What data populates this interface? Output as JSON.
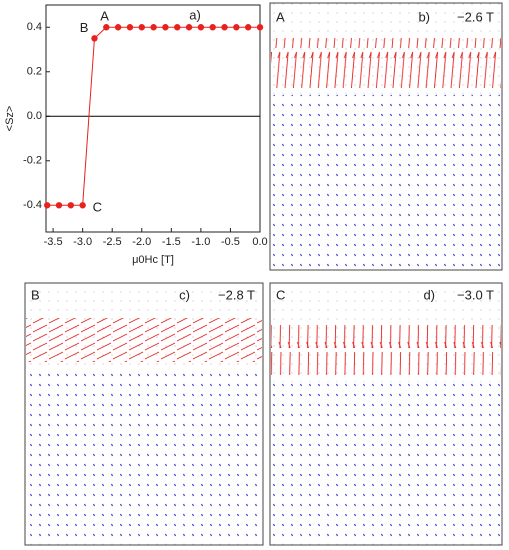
{
  "chart_data": {
    "type": "line",
    "panel_label": "a)",
    "x_label": "μ0Hc [T]",
    "y_label": "<Sz>",
    "x": [
      -3.6,
      -3.4,
      -3.2,
      -3.0,
      -2.8,
      -2.6,
      -2.4,
      -2.2,
      -2.0,
      -1.8,
      -1.6,
      -1.4,
      -1.2,
      -1.0,
      -0.8,
      -0.6,
      -0.4,
      -0.2,
      0.0
    ],
    "series": [
      {
        "color": "#e8211e",
        "values": [
          -0.4,
          -0.4,
          -0.4,
          -0.4,
          0.35,
          0.4,
          0.4,
          0.4,
          0.4,
          0.4,
          0.4,
          0.4,
          0.4,
          0.4,
          0.4,
          0.4,
          0.4,
          0.4,
          0.4
        ]
      }
    ],
    "point_labels": [
      {
        "index": 3,
        "text": "C"
      },
      {
        "index": 4,
        "text": "B"
      },
      {
        "index": 5,
        "text": "A"
      }
    ],
    "xlim": [
      -3.62,
      0
    ],
    "ylim": [
      -0.52,
      0.5
    ],
    "xticks": [
      -3.5,
      {
        "value": -3,
        "label": "-3.0"
      },
      -2.5,
      {
        "value": -2,
        "label": "-2.0"
      },
      -1.5,
      {
        "value": -1,
        "label": "-1.0"
      },
      -0.5,
      {
        "value": 0,
        "label": "0.0"
      }
    ],
    "yticks": [
      -0.4,
      -0.2,
      {
        "value": 0,
        "label": "0.0"
      },
      0.2,
      0.4
    ],
    "zero_line": true
  },
  "panels": [
    {
      "letter": "A",
      "label": "b)",
      "field": "−2.6 T"
    },
    {
      "letter": "B",
      "label": "c)",
      "field": "−2.8 T"
    },
    {
      "letter": "C",
      "label": "d)",
      "field": "−3.0 T"
    }
  ]
}
